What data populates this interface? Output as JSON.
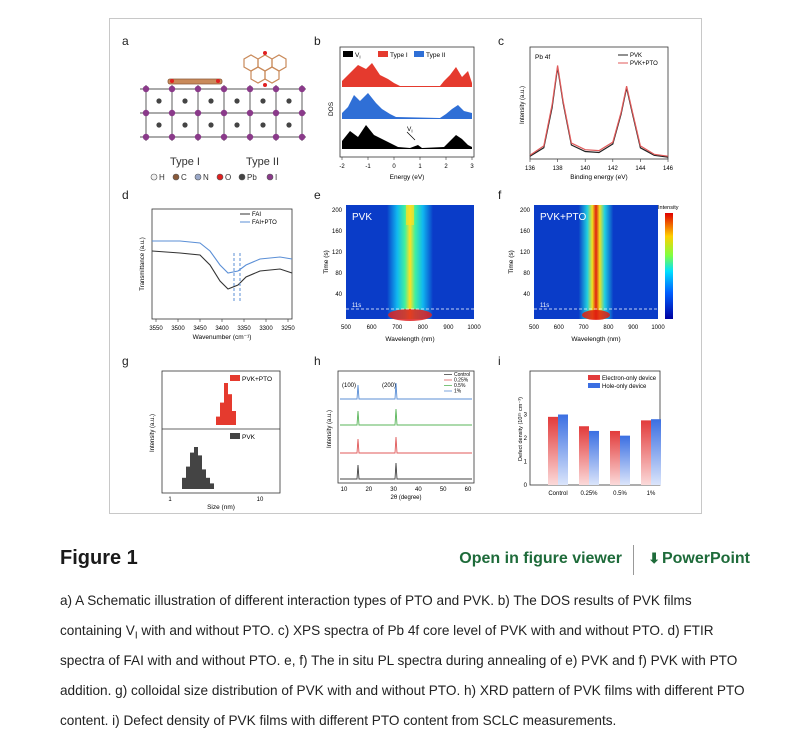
{
  "figure": {
    "panel_letters": [
      "a",
      "b",
      "c",
      "d",
      "e",
      "f",
      "g",
      "h",
      "i"
    ],
    "panel_a": {
      "type_labels": [
        "Type I",
        "Type II"
      ],
      "legend": [
        {
          "symbol": "H",
          "color": "#f0f0f0"
        },
        {
          "symbol": "C",
          "color": "#8a5a3a"
        },
        {
          "symbol": "N",
          "color": "#9aa8c8"
        },
        {
          "symbol": "O",
          "color": "#e02020"
        },
        {
          "symbol": "Pb",
          "color": "#444444"
        },
        {
          "symbol": "I",
          "color": "#8a3a8a"
        }
      ]
    },
    "panel_b": {
      "legend": [
        "V",
        "Type I",
        "Type II"
      ],
      "legend_sub": "I",
      "ylabel": "DOS",
      "xlabel": "Energy (eV)",
      "xticks": [
        "-2",
        "-1",
        "0",
        "1",
        "2",
        "3"
      ],
      "annotation": "V",
      "annotation_sub": "I",
      "colors": [
        "#000000",
        "#e53a2e",
        "#2f6fd6"
      ]
    },
    "panel_c": {
      "corner_label": "Pb 4f",
      "legend": [
        "PVK",
        "PVK+PTO"
      ],
      "ylabel": "Intensity (a.u.)",
      "xlabel": "Binding energy (eV)",
      "xticks": [
        "136",
        "138",
        "140",
        "142",
        "144",
        "146"
      ],
      "colors": [
        "#222222",
        "#e05a5a"
      ]
    },
    "panel_d": {
      "legend": [
        "FAI",
        "FAI+PTO"
      ],
      "ylabel": "Transmittance (a.u.)",
      "xlabel": "Wavenumber (cm⁻¹)",
      "xticks": [
        "3550",
        "3500",
        "3450",
        "3400",
        "3350",
        "3300",
        "3250"
      ],
      "colors": [
        "#333333",
        "#5b8fd6"
      ]
    },
    "panel_e": {
      "title": "PVK",
      "ylabel": "Time (s)",
      "xlabel": "Wavelength (nm)",
      "yticks": [
        "40",
        "80",
        "120",
        "160",
        "200"
      ],
      "xticks": [
        "500",
        "600",
        "700",
        "800",
        "900",
        "1000"
      ],
      "dash_label": "11s"
    },
    "panel_f": {
      "title": "PVK+PTO",
      "ylabel": "Time (s)",
      "xlabel": "Wavelength (nm)",
      "yticks": [
        "40",
        "80",
        "120",
        "160",
        "200"
      ],
      "xticks": [
        "500",
        "600",
        "700",
        "800",
        "900",
        "1000"
      ],
      "dash_label": "11s",
      "colorbar_title": "Intensity"
    },
    "panel_g": {
      "legend_top": "PVK+PTO",
      "legend_bottom": "PVK",
      "ylabel": "Intensity (a.u.)",
      "xlabel": "Size (nm)",
      "xticks": [
        "1",
        "10"
      ],
      "colors": [
        "#e53a2e",
        "#444444"
      ]
    },
    "panel_h": {
      "legend": [
        "Control",
        "0.25%",
        "0.5%",
        "1%"
      ],
      "peak_labels": [
        "(100)",
        "(200)"
      ],
      "ylabel": "Intensity (a.u.)",
      "xlabel": "2θ (degree)",
      "xticks": [
        "10",
        "20",
        "30",
        "40",
        "50",
        "60"
      ],
      "colors": [
        "#444444",
        "#e05a5a",
        "#5ab55a",
        "#5b8fd6"
      ]
    },
    "panel_i": {
      "legend": [
        "Electron-only device",
        "Hole-only device"
      ],
      "ylabel": "Defect density (10¹⁵ cm⁻³)",
      "yticks": [
        "0",
        "1",
        "2",
        "3"
      ],
      "colors": [
        "#e23b3b",
        "#3b6fe2"
      ]
    }
  },
  "chart_data": [
    {
      "type": "bar",
      "categories": [
        "Control",
        "0.25%",
        "0.5%",
        "1%"
      ],
      "series": [
        {
          "name": "Electron-only device",
          "values": [
            2.9,
            2.5,
            2.3,
            2.75
          ]
        },
        {
          "name": "Hole-only device",
          "values": [
            3.0,
            2.3,
            2.1,
            2.8
          ]
        }
      ],
      "ylim": [
        0,
        4
      ]
    },
    {
      "type": "line",
      "series": [
        {
          "name": "PVK",
          "x": [
            136,
            137,
            137.6,
            138.0,
            138.4,
            139,
            140,
            141,
            142,
            142.6,
            143.0,
            143.4,
            144,
            145,
            146
          ],
          "y": [
            0.03,
            0.12,
            0.55,
            0.98,
            0.6,
            0.15,
            0.08,
            0.07,
            0.16,
            0.48,
            0.76,
            0.5,
            0.12,
            0.04,
            0.02
          ]
        },
        {
          "name": "PVK+PTO",
          "x": [
            136,
            137,
            137.6,
            138.0,
            138.4,
            139,
            140,
            141,
            142,
            142.6,
            143.0,
            143.4,
            144,
            145,
            146
          ],
          "y": [
            0.04,
            0.14,
            0.58,
            1.0,
            0.62,
            0.17,
            0.1,
            0.09,
            0.18,
            0.5,
            0.78,
            0.52,
            0.14,
            0.05,
            0.03
          ]
        }
      ],
      "xlim": [
        136,
        146
      ]
    }
  ],
  "caption_header": {
    "title": "Figure 1",
    "open_viewer": "Open in figure viewer",
    "powerpoint": "PowerPoint"
  },
  "caption": {
    "p1": "a) A Schematic illustration of different interaction types of PTO and PVK. b) The DOS results of PVK films containing V",
    "p1_sub": "I",
    "p2": " with and without PTO. c) XPS spectra of Pb 4f core level of PVK with and without PTO. d) FTIR spectra of FAI with and without PTO. e, f) The in situ PL spectra during annealing of e) PVK and f) PVK with PTO addition. g) colloidal size distribution of PVK with and without PTO. h) XRD pattern of PVK films with different PTO content. i) Defect density of PVK films with different PTO content from SCLC measurements."
  }
}
